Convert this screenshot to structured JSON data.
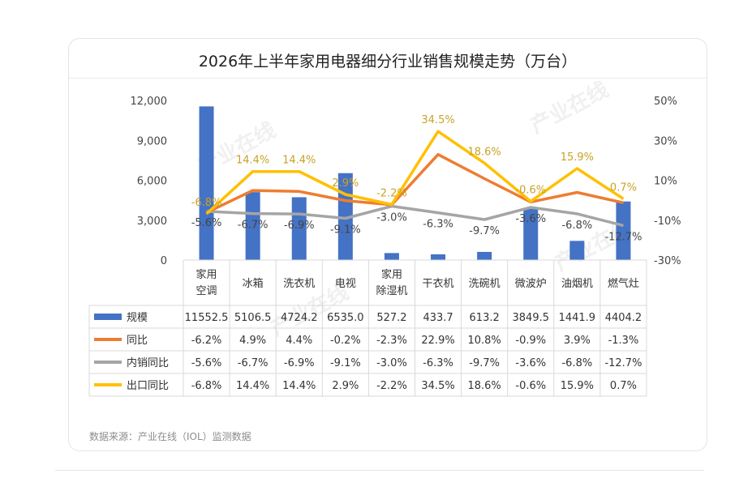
{
  "title": "2026年上半年家用电器细分行业销售规模走势（万台）",
  "source": "数据来源：产业在线（IOL）监测数据",
  "watermark": "产业在线",
  "colors": {
    "bar": "#4472c4",
    "yoy": "#ed7d31",
    "domestic": "#a5a5a5",
    "export": "#ffc000",
    "export_label": "#c9a227",
    "grid": "#d9d9d9"
  },
  "chart_data": {
    "type": "bar",
    "title": "2026年上半年家用电器细分行业销售规模走势（万台）",
    "categories": [
      [
        "家用",
        "空调"
      ],
      [
        "冰箱"
      ],
      [
        "洗衣机"
      ],
      [
        "电视"
      ],
      [
        "家用",
        "除湿机"
      ],
      [
        "干衣机"
      ],
      [
        "洗碗机"
      ],
      [
        "微波炉"
      ],
      [
        "油烟机"
      ],
      [
        "燃气灶"
      ]
    ],
    "y_left": {
      "ticks": [
        "0",
        "3,000",
        "6,000",
        "9,000",
        "12,000"
      ],
      "range": [
        0,
        12000
      ]
    },
    "y_right": {
      "ticks": [
        "-30%",
        "-10%",
        "10%",
        "30%",
        "50%"
      ],
      "range": [
        -30,
        50
      ]
    },
    "grid": false,
    "series": [
      {
        "name": "规模",
        "kind": "bar",
        "axis": "left",
        "values": [
          11552.5,
          5106.5,
          4724.2,
          6535.0,
          527.2,
          433.7,
          613.2,
          3849.5,
          1441.9,
          4404.2
        ],
        "labels": [
          "11552.5",
          "5106.5",
          "4724.2",
          "6535.0",
          "527.2",
          "433.7",
          "613.2",
          "3849.5",
          "1441.9",
          "4404.2"
        ]
      },
      {
        "name": "同比",
        "kind": "line",
        "axis": "right",
        "values": [
          -6.2,
          4.9,
          4.4,
          -0.2,
          -2.3,
          22.9,
          10.8,
          -0.9,
          3.9,
          -1.3
        ],
        "labels": [
          "-6.2%",
          "4.9%",
          "4.4%",
          "-0.2%",
          "-2.3%",
          "22.9%",
          "10.8%",
          "-0.9%",
          "3.9%",
          "-1.3%"
        ]
      },
      {
        "name": "内销同比",
        "kind": "line",
        "axis": "right",
        "values": [
          -5.6,
          -6.7,
          -6.9,
          -9.1,
          -3.0,
          -6.3,
          -9.7,
          -3.6,
          -6.8,
          -12.7
        ],
        "labels": [
          "-5.6%",
          "-6.7%",
          "-6.9%",
          "-9.1%",
          "-3.0%",
          "-6.3%",
          "-9.7%",
          "-3.6%",
          "-6.8%",
          "-12.7%"
        ]
      },
      {
        "name": "出口同比",
        "kind": "line",
        "axis": "right",
        "values": [
          -6.8,
          14.4,
          14.4,
          2.9,
          -2.2,
          34.5,
          18.6,
          -0.6,
          15.9,
          0.7
        ],
        "labels": [
          "-6.8%",
          "14.4%",
          "14.4%",
          "2.9%",
          "-2.2%",
          "34.5%",
          "18.6%",
          "-0.6%",
          "15.9%",
          "0.7%"
        ]
      }
    ],
    "data_labels": [
      "出口同比",
      "内销同比"
    ],
    "legend": "data-table"
  }
}
